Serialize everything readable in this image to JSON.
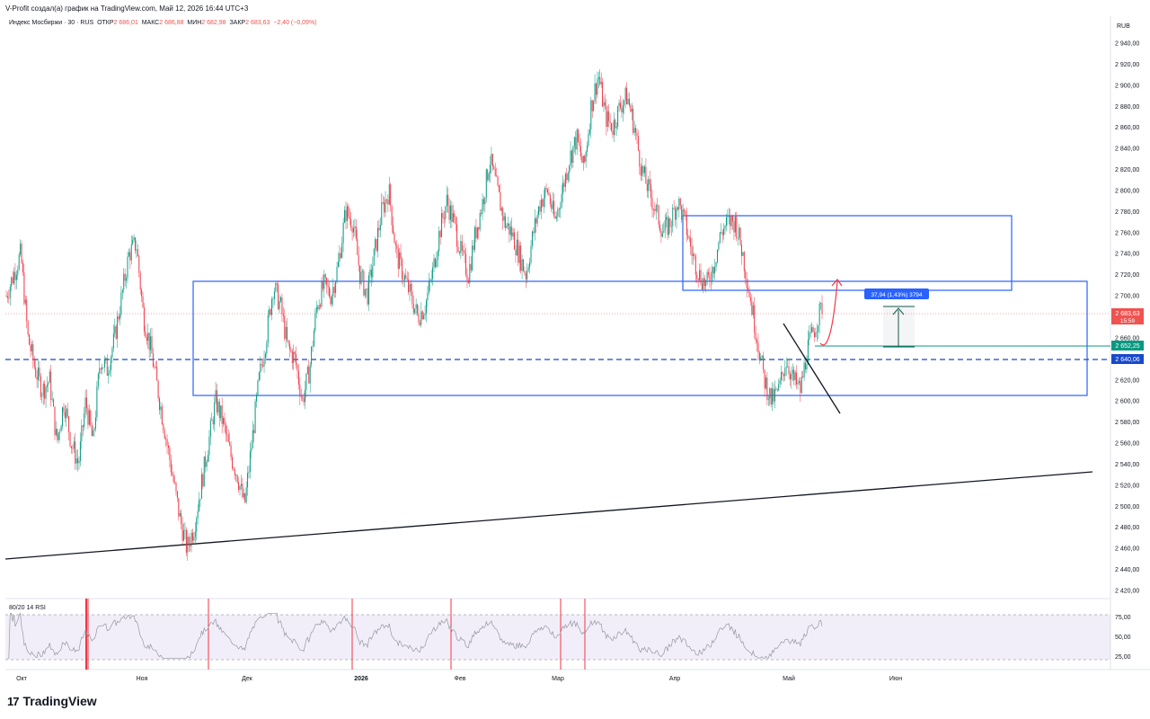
{
  "header": {
    "published_by": "V-Profit создал(а) график на TradingView.com, Май 12, 2026 16:44 UTC+3",
    "symbol": "Индекс Мосбиржи · 30 · RUS",
    "ohlc": [
      {
        "label": "ОТКР",
        "value": "2 686,01"
      },
      {
        "label": "МАКС",
        "value": "2 686,88"
      },
      {
        "label": "МИН",
        "value": "2 682,98"
      },
      {
        "label": "ЗАКР",
        "value": "2 683,63"
      }
    ],
    "change": "−2,40 (−0,09%)"
  },
  "currency": "RUB",
  "price_axis_ticks": [
    "2 940,00",
    "2 920,00",
    "2 900,00",
    "2 880,00",
    "2 860,00",
    "2 840,00",
    "2 820,00",
    "2 800,00",
    "2 780,00",
    "2 760,00",
    "2 740,00",
    "2 720,00",
    "2 700,00",
    "2 680,00",
    "2 660,00",
    "2 640,00",
    "2 620,00",
    "2 600,00",
    "2 580,00",
    "2 560,00",
    "2 540,00",
    "2 520,00",
    "2 500,00",
    "2 480,00",
    "2 460,00",
    "2 440,00",
    "2 420,00"
  ],
  "time_axis_ticks": [
    "Окт",
    "Ноя",
    "Дек",
    "2026",
    "Фев",
    "Мар",
    "Апр",
    "Май",
    "Июн"
  ],
  "price_tags": {
    "last": {
      "value": "2 683,63",
      "countdown": "15:59",
      "color": "#ef5350"
    },
    "level_green": {
      "value": "2 652,25",
      "color": "#089981"
    },
    "level_blue": {
      "value": "2 640,06",
      "color": "#1848cc"
    }
  },
  "measure_label": "37,94 (1,43%) 3794",
  "rsi": {
    "title": "80/20 14 RSI",
    "ticks": [
      "75,00",
      "50,00",
      "25,00"
    ],
    "upper": 80,
    "lower": 20
  },
  "brand": {
    "name": "TradingView",
    "logo": "17"
  },
  "chart_data": {
    "type": "candlestick",
    "title": "Индекс Мосбиржи · 30 · RUS",
    "ylim": [
      2410,
      2950
    ],
    "key_levels": [
      2652.25,
      2640.06
    ],
    "last_close": 2683.63,
    "path": [
      [
        2700,
        2720
      ],
      [
        2740,
        2660
      ],
      [
        2630,
        2610
      ],
      [
        2620,
        2560
      ],
      [
        2600,
        2560
      ],
      [
        2540,
        2600
      ],
      [
        2560,
        2640
      ],
      [
        2630,
        2660
      ],
      [
        2700,
        2740
      ],
      [
        2750,
        2680
      ],
      [
        2650,
        2610
      ],
      [
        2570,
        2530
      ],
      [
        2490,
        2460
      ],
      [
        2480,
        2520
      ],
      [
        2560,
        2600
      ],
      [
        2580,
        2550
      ],
      [
        2530,
        2500
      ],
      [
        2560,
        2620
      ],
      [
        2660,
        2710
      ],
      [
        2690,
        2650
      ],
      [
        2640,
        2600
      ],
      [
        2630,
        2690
      ],
      [
        2710,
        2700
      ],
      [
        2730,
        2780
      ],
      [
        2770,
        2720
      ],
      [
        2700,
        2740
      ],
      [
        2780,
        2800
      ],
      [
        2740,
        2720
      ],
      [
        2700,
        2680
      ],
      [
        2690,
        2720
      ],
      [
        2760,
        2790
      ],
      [
        2770,
        2740
      ],
      [
        2720,
        2760
      ],
      [
        2790,
        2830
      ],
      [
        2800,
        2770
      ],
      [
        2760,
        2740
      ],
      [
        2720,
        2760
      ],
      [
        2790,
        2800
      ],
      [
        2770,
        2800
      ],
      [
        2830,
        2850
      ],
      [
        2820,
        2880
      ],
      [
        2910,
        2870
      ],
      [
        2860,
        2880
      ],
      [
        2890,
        2860
      ],
      [
        2820,
        2800
      ],
      [
        2780,
        2760
      ],
      [
        2770,
        2790
      ],
      [
        2770,
        2740
      ],
      [
        2720,
        2710
      ],
      [
        2730,
        2760
      ],
      [
        2770,
        2770
      ],
      [
        2740,
        2700
      ],
      [
        2660,
        2620
      ],
      [
        2600,
        2610
      ],
      [
        2640,
        2620
      ],
      [
        2610,
        2650
      ],
      [
        2670,
        2690
      ]
    ]
  }
}
